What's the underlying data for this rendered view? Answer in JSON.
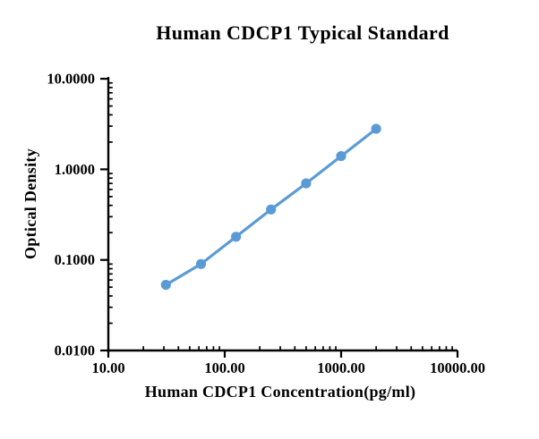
{
  "chart_data": {
    "type": "line",
    "title": "Human CDCP1 Typical Standard",
    "xlabel": "Human CDCP1 Concentration(pg/ml)",
    "ylabel": "Optical Density",
    "x_scale": "log",
    "y_scale": "log",
    "xlim": [
      10,
      10000
    ],
    "ylim": [
      0.01,
      10
    ],
    "grid": false,
    "legend": "none",
    "x_ticks": [
      10,
      100,
      1000,
      10000
    ],
    "x_tick_labels": [
      "10.00",
      "100.00",
      "1000.00",
      "10000.00"
    ],
    "y_ticks": [
      0.01,
      0.1,
      1,
      10
    ],
    "y_tick_labels": [
      "0.0100",
      "0.1000",
      "1.0000",
      "10.0000"
    ],
    "series": [
      {
        "x": [
          31.25,
          62.5,
          125,
          250,
          500,
          1000,
          2000
        ],
        "y": [
          0.053,
          0.09,
          0.18,
          0.36,
          0.7,
          1.4,
          2.8
        ],
        "color": "#5B9BD5",
        "marker": "circle"
      }
    ],
    "axis_color": "#000000",
    "background": "#FFFFFF"
  }
}
